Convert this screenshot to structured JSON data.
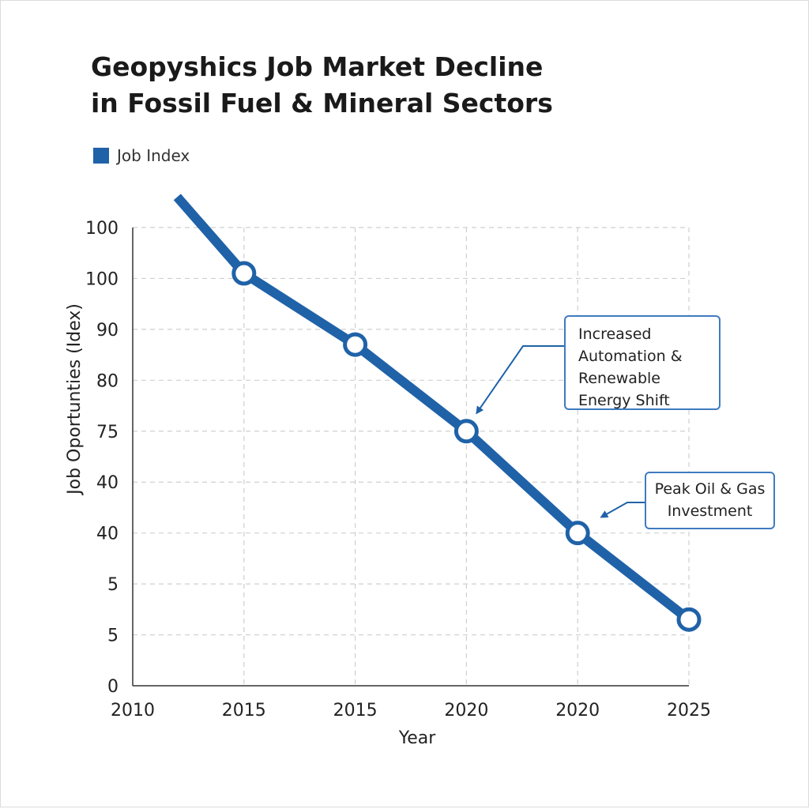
{
  "chart_data": {
    "type": "line",
    "title_lines": [
      "Geopyshics Job Market Decline",
      "in Fossil Fuel & Mineral Sectors"
    ],
    "legend": {
      "position": "top-left",
      "entries": [
        "Job Index"
      ]
    },
    "xlabel": "Year",
    "ylabel": "Job Oportunties (Idex)",
    "x_tick_labels": [
      "2010",
      "2015",
      "2015",
      "2020",
      "2020",
      "2025"
    ],
    "y_tick_labels": [
      "0",
      "5",
      "5",
      "40",
      "40",
      "75",
      "80",
      "90",
      "100",
      "100"
    ],
    "grid": true,
    "series": [
      {
        "name": "Job Index",
        "color": "#1f62a8",
        "line_start": {
          "x": 0.4,
          "y": 9.6
        },
        "points": [
          {
            "x": 1,
            "y": 8.1
          },
          {
            "x": 2,
            "y": 6.7
          },
          {
            "x": 3,
            "y": 5.0
          },
          {
            "x": 4,
            "y": 3.0
          },
          {
            "x": 5,
            "y": 1.3
          }
        ]
      }
    ],
    "annotations": [
      {
        "lines": [
          "Increased",
          "Automation &",
          "Renewable",
          "Energy Shift"
        ]
      },
      {
        "lines": [
          "Peak Oil & Gas",
          "Investment"
        ]
      }
    ]
  }
}
